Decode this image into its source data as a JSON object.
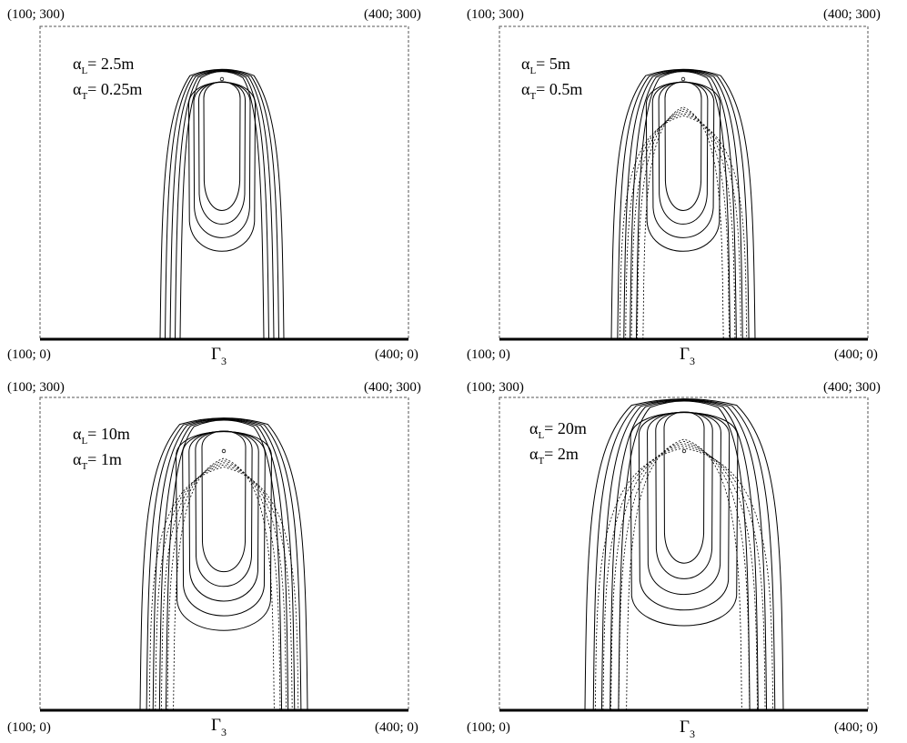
{
  "panels": [
    {
      "corners": {
        "top_left": "(100; 300)",
        "top_right": "(400; 300)",
        "bottom_left": "(100; 0)",
        "bottom_right": "(400; 0)"
      },
      "boundary": {
        "symbol": "Γ",
        "subscript": "3"
      },
      "params": [
        {
          "symbol": "α",
          "subscript": "L",
          "value": "= 2.5m"
        },
        {
          "symbol": "α",
          "subscript": "T",
          "value": "= 0.25m"
        }
      ],
      "alpha_L": 2.5,
      "alpha_T": 0.25
    },
    {
      "corners": {
        "top_left": "(100; 300)",
        "top_right": "(400; 300)",
        "bottom_left": "(100; 0)",
        "bottom_right": "(400; 0)"
      },
      "boundary": {
        "symbol": "Γ",
        "subscript": "3"
      },
      "params": [
        {
          "symbol": "α",
          "subscript": "L",
          "value": "= 5m"
        },
        {
          "symbol": "α",
          "subscript": "T",
          "value": "= 0.5m"
        }
      ],
      "alpha_L": 5,
      "alpha_T": 0.5
    },
    {
      "corners": {
        "top_left": "(100; 300)",
        "top_right": "(400; 300)",
        "bottom_left": "(100; 0)",
        "bottom_right": "(400; 0)"
      },
      "boundary": {
        "symbol": "Γ",
        "subscript": "3"
      },
      "params": [
        {
          "symbol": "α",
          "subscript": "L",
          "value": "= 10m"
        },
        {
          "symbol": "α",
          "subscript": "T",
          "value": "= 1m"
        }
      ],
      "alpha_L": 10,
      "alpha_T": 1
    },
    {
      "corners": {
        "top_left": "(100; 300)",
        "top_right": "(400; 300)",
        "bottom_left": "(100; 0)",
        "bottom_right": "(400; 0)"
      },
      "boundary": {
        "symbol": "Γ",
        "subscript": "3"
      },
      "params": [
        {
          "symbol": "α",
          "subscript": "L",
          "value": "= 20m"
        },
        {
          "symbol": "α",
          "subscript": "T",
          "value": "= 2m"
        }
      ],
      "alpha_L": 20,
      "alpha_T": 2
    }
  ]
}
